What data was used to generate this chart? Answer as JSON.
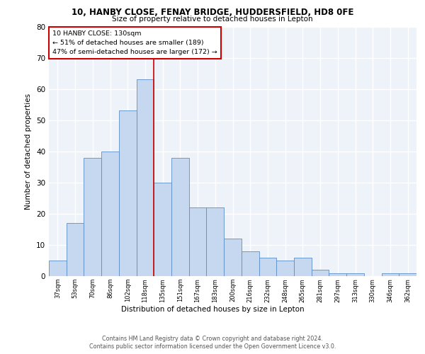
{
  "title1": "10, HANBY CLOSE, FENAY BRIDGE, HUDDERSFIELD, HD8 0FE",
  "title2": "Size of property relative to detached houses in Lepton",
  "xlabel": "Distribution of detached houses by size in Lepton",
  "ylabel": "Number of detached properties",
  "categories": [
    "37sqm",
    "53sqm",
    "70sqm",
    "86sqm",
    "102sqm",
    "118sqm",
    "135sqm",
    "151sqm",
    "167sqm",
    "183sqm",
    "200sqm",
    "216sqm",
    "232sqm",
    "248sqm",
    "265sqm",
    "281sqm",
    "297sqm",
    "313sqm",
    "330sqm",
    "346sqm",
    "362sqm"
  ],
  "values": [
    5,
    17,
    38,
    40,
    53,
    63,
    30,
    38,
    22,
    22,
    12,
    8,
    6,
    5,
    6,
    2,
    1,
    1,
    0,
    1,
    1
  ],
  "bar_color": "#c5d8f0",
  "bar_edge_color": "#5b8dc8",
  "marker_line_color": "#cc0000",
  "annotation_line1": "10 HANBY CLOSE: 130sqm",
  "annotation_line2": "← 51% of detached houses are smaller (189)",
  "annotation_line3": "47% of semi-detached houses are larger (172) →",
  "annotation_box_color": "#cc0000",
  "ylim": [
    0,
    80
  ],
  "yticks": [
    0,
    10,
    20,
    30,
    40,
    50,
    60,
    70,
    80
  ],
  "footer1": "Contains HM Land Registry data © Crown copyright and database right 2024.",
  "footer2": "Contains public sector information licensed under the Open Government Licence v3.0.",
  "bg_color": "#eef2f9",
  "grid_color": "#ffffff"
}
